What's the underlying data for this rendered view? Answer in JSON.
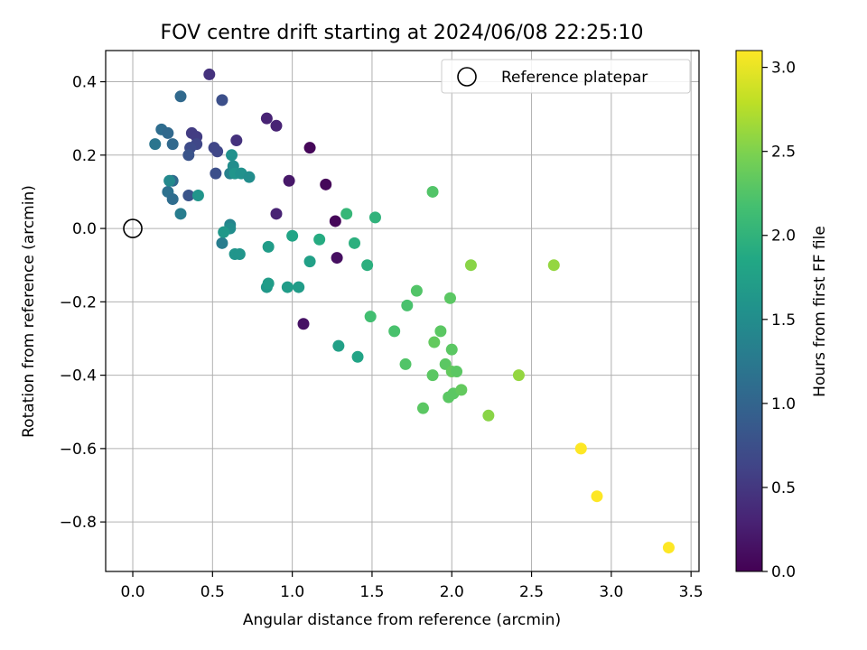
{
  "chart_data": {
    "type": "scatter",
    "title": "FOV centre drift starting at 2024/06/08 22:25:10",
    "xlabel": "Angular distance from reference (arcmin)",
    "ylabel": "Rotation from reference (arcmin)",
    "xlim": [
      -0.17,
      3.55
    ],
    "ylim": [
      -0.935,
      0.485
    ],
    "x_ticks": [
      0.0,
      0.5,
      1.0,
      1.5,
      2.0,
      2.5,
      3.0,
      3.5
    ],
    "x_tick_labels": [
      "0.0",
      "0.5",
      "1.0",
      "1.5",
      "2.0",
      "2.5",
      "3.0",
      "3.5"
    ],
    "y_ticks": [
      -0.8,
      -0.6,
      -0.4,
      -0.2,
      0.0,
      0.2,
      0.4
    ],
    "y_tick_labels": [
      "−0.8",
      "−0.6",
      "−0.4",
      "−0.2",
      "0.0",
      "0.2",
      "0.4"
    ],
    "grid": true,
    "legend": {
      "placement": "top-right",
      "entries": [
        "Reference platepar"
      ]
    },
    "reference_point": {
      "x": 0.0,
      "y": 0.0,
      "marker": "open-circle"
    },
    "colorbar": {
      "label": "Hours from first FF file",
      "colormap": "viridis",
      "range": [
        0.0,
        3.1
      ],
      "ticks": [
        0.0,
        0.5,
        1.0,
        1.5,
        2.0,
        2.5,
        3.0
      ],
      "tick_labels": [
        "0.0",
        "0.5",
        "1.0",
        "1.5",
        "2.0",
        "2.5",
        "3.0"
      ]
    },
    "points": [
      {
        "x": 1.27,
        "y": 0.02,
        "t": 0.05
      },
      {
        "x": 1.11,
        "y": 0.22,
        "t": 0.05
      },
      {
        "x": 1.21,
        "y": 0.12,
        "t": 0.05
      },
      {
        "x": 1.28,
        "y": -0.08,
        "t": 0.12
      },
      {
        "x": 1.07,
        "y": -0.26,
        "t": 0.15
      },
      {
        "x": 0.98,
        "y": 0.13,
        "t": 0.2
      },
      {
        "x": 0.9,
        "y": 0.28,
        "t": 0.3
      },
      {
        "x": 0.84,
        "y": 0.3,
        "t": 0.3
      },
      {
        "x": 0.9,
        "y": 0.04,
        "t": 0.3
      },
      {
        "x": 0.48,
        "y": 0.42,
        "t": 0.45
      },
      {
        "x": 0.65,
        "y": 0.24,
        "t": 0.45
      },
      {
        "x": 0.37,
        "y": 0.26,
        "t": 0.55
      },
      {
        "x": 0.56,
        "y": 0.35,
        "t": 0.75
      },
      {
        "x": 0.51,
        "y": 0.22,
        "t": 0.65
      },
      {
        "x": 0.53,
        "y": 0.21,
        "t": 0.65
      },
      {
        "x": 0.4,
        "y": 0.25,
        "t": 0.55
      },
      {
        "x": 0.4,
        "y": 0.23,
        "t": 0.65
      },
      {
        "x": 0.36,
        "y": 0.22,
        "t": 0.7
      },
      {
        "x": 0.35,
        "y": 0.2,
        "t": 0.8
      },
      {
        "x": 0.52,
        "y": 0.15,
        "t": 0.75
      },
      {
        "x": 0.35,
        "y": 0.09,
        "t": 0.8
      },
      {
        "x": 0.3,
        "y": 0.36,
        "t": 1.05
      },
      {
        "x": 0.18,
        "y": 0.27,
        "t": 1.1
      },
      {
        "x": 0.22,
        "y": 0.26,
        "t": 1.05
      },
      {
        "x": 0.25,
        "y": 0.23,
        "t": 1.05
      },
      {
        "x": 0.14,
        "y": 0.23,
        "t": 1.2
      },
      {
        "x": 0.25,
        "y": 0.13,
        "t": 1.05
      },
      {
        "x": 0.22,
        "y": 0.1,
        "t": 1.15
      },
      {
        "x": 0.25,
        "y": 0.08,
        "t": 1.1
      },
      {
        "x": 0.3,
        "y": 0.04,
        "t": 1.3
      },
      {
        "x": 0.23,
        "y": 0.13,
        "t": 1.45
      },
      {
        "x": 0.61,
        "y": 0.15,
        "t": 1.35
      },
      {
        "x": 0.62,
        "y": 0.2,
        "t": 1.55
      },
      {
        "x": 0.63,
        "y": 0.17,
        "t": 1.5
      },
      {
        "x": 0.64,
        "y": 0.15,
        "t": 1.6
      },
      {
        "x": 0.68,
        "y": 0.15,
        "t": 1.55
      },
      {
        "x": 0.73,
        "y": 0.14,
        "t": 1.5
      },
      {
        "x": 0.41,
        "y": 0.09,
        "t": 1.6
      },
      {
        "x": 0.61,
        "y": 0.01,
        "t": 1.4
      },
      {
        "x": 0.61,
        "y": 0.0,
        "t": 1.5
      },
      {
        "x": 0.56,
        "y": -0.04,
        "t": 1.3
      },
      {
        "x": 0.57,
        "y": -0.01,
        "t": 1.65
      },
      {
        "x": 0.64,
        "y": -0.07,
        "t": 1.6
      },
      {
        "x": 0.67,
        "y": -0.07,
        "t": 1.6
      },
      {
        "x": 0.85,
        "y": -0.05,
        "t": 1.7
      },
      {
        "x": 0.84,
        "y": -0.16,
        "t": 1.65
      },
      {
        "x": 0.85,
        "y": -0.15,
        "t": 1.7
      },
      {
        "x": 0.97,
        "y": -0.16,
        "t": 1.7
      },
      {
        "x": 1.04,
        "y": -0.16,
        "t": 1.7
      },
      {
        "x": 1.0,
        "y": -0.02,
        "t": 1.8
      },
      {
        "x": 1.11,
        "y": -0.09,
        "t": 1.75
      },
      {
        "x": 1.17,
        "y": -0.03,
        "t": 1.9
      },
      {
        "x": 1.29,
        "y": -0.32,
        "t": 1.75
      },
      {
        "x": 1.41,
        "y": -0.35,
        "t": 1.8
      },
      {
        "x": 1.34,
        "y": 0.04,
        "t": 2.05
      },
      {
        "x": 1.39,
        "y": -0.04,
        "t": 1.95
      },
      {
        "x": 1.47,
        "y": -0.1,
        "t": 1.95
      },
      {
        "x": 1.52,
        "y": 0.03,
        "t": 2.0
      },
      {
        "x": 1.49,
        "y": -0.24,
        "t": 2.15
      },
      {
        "x": 1.64,
        "y": -0.28,
        "t": 2.2
      },
      {
        "x": 1.72,
        "y": -0.21,
        "t": 2.2
      },
      {
        "x": 1.78,
        "y": -0.17,
        "t": 2.25
      },
      {
        "x": 1.71,
        "y": -0.37,
        "t": 2.25
      },
      {
        "x": 1.82,
        "y": -0.49,
        "t": 2.3
      },
      {
        "x": 1.88,
        "y": 0.1,
        "t": 2.25
      },
      {
        "x": 1.89,
        "y": -0.31,
        "t": 2.35
      },
      {
        "x": 1.93,
        "y": -0.28,
        "t": 2.3
      },
      {
        "x": 1.88,
        "y": -0.4,
        "t": 2.3
      },
      {
        "x": 1.96,
        "y": -0.37,
        "t": 2.3
      },
      {
        "x": 1.99,
        "y": -0.19,
        "t": 2.3
      },
      {
        "x": 2.0,
        "y": -0.33,
        "t": 2.3
      },
      {
        "x": 2.0,
        "y": -0.39,
        "t": 2.35
      },
      {
        "x": 2.03,
        "y": -0.39,
        "t": 2.3
      },
      {
        "x": 1.98,
        "y": -0.46,
        "t": 2.3
      },
      {
        "x": 2.01,
        "y": -0.45,
        "t": 2.3
      },
      {
        "x": 2.06,
        "y": -0.44,
        "t": 2.35
      },
      {
        "x": 2.12,
        "y": -0.1,
        "t": 2.55
      },
      {
        "x": 2.23,
        "y": -0.51,
        "t": 2.55
      },
      {
        "x": 2.42,
        "y": -0.4,
        "t": 2.6
      },
      {
        "x": 2.64,
        "y": -0.1,
        "t": 2.6
      },
      {
        "x": 2.81,
        "y": -0.6,
        "t": 3.1
      },
      {
        "x": 2.91,
        "y": -0.73,
        "t": 3.1
      },
      {
        "x": 3.36,
        "y": -0.87,
        "t": 3.1
      }
    ]
  }
}
